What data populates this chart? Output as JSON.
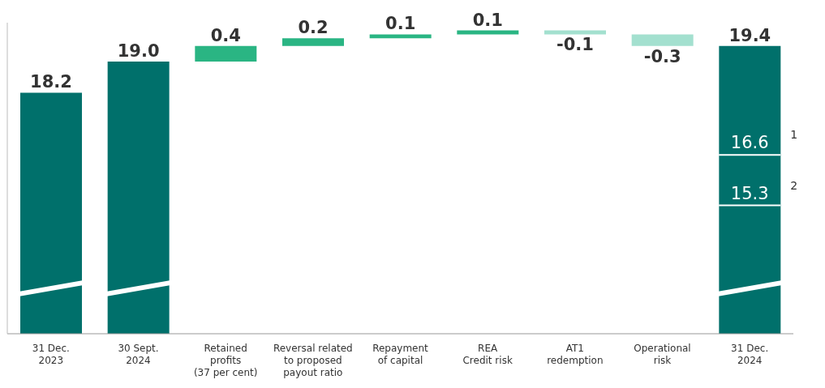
{
  "chart_data": {
    "type": "bar",
    "categories": [
      "31 Dec.\n2023",
      "30 Sept.\n2024",
      "Retained\nprofits\n(37 per cent)",
      "Reversal related\nto proposed\npayout ratio",
      "Repayment\nof capital",
      "REA\nCredit risk",
      "AT1\nredemption",
      "Operational\nrisk",
      "31 Dec.\n2024"
    ],
    "values": [
      18.2,
      19.0,
      0.4,
      0.2,
      0.1,
      0.1,
      -0.1,
      -0.3,
      19.4
    ],
    "base": [
      null,
      null,
      19.0,
      19.4,
      19.6,
      19.7,
      19.8,
      19.7,
      null
    ],
    "ylim": [
      12,
      20
    ],
    "colors": [
      "#00706b",
      "#00706b",
      "#2ab583",
      "#2ab583",
      "#2ab583",
      "#2ab583",
      "#a3e0cf",
      "#a3e0cf",
      "#00706b"
    ],
    "value_labels": [
      "18.2",
      "19.0",
      "0.4",
      "0.2",
      "0.1",
      "0.1",
      "-0.1",
      "-0.3",
      "19.4"
    ],
    "tick_labels": "x",
    "ref_lines": [
      {
        "axis": "y",
        "value": 16.6,
        "label": "16.6"
      },
      {
        "axis": "y",
        "value": 15.3,
        "label": "15.3"
      }
    ],
    "annotations": [
      "1",
      "2"
    ]
  }
}
